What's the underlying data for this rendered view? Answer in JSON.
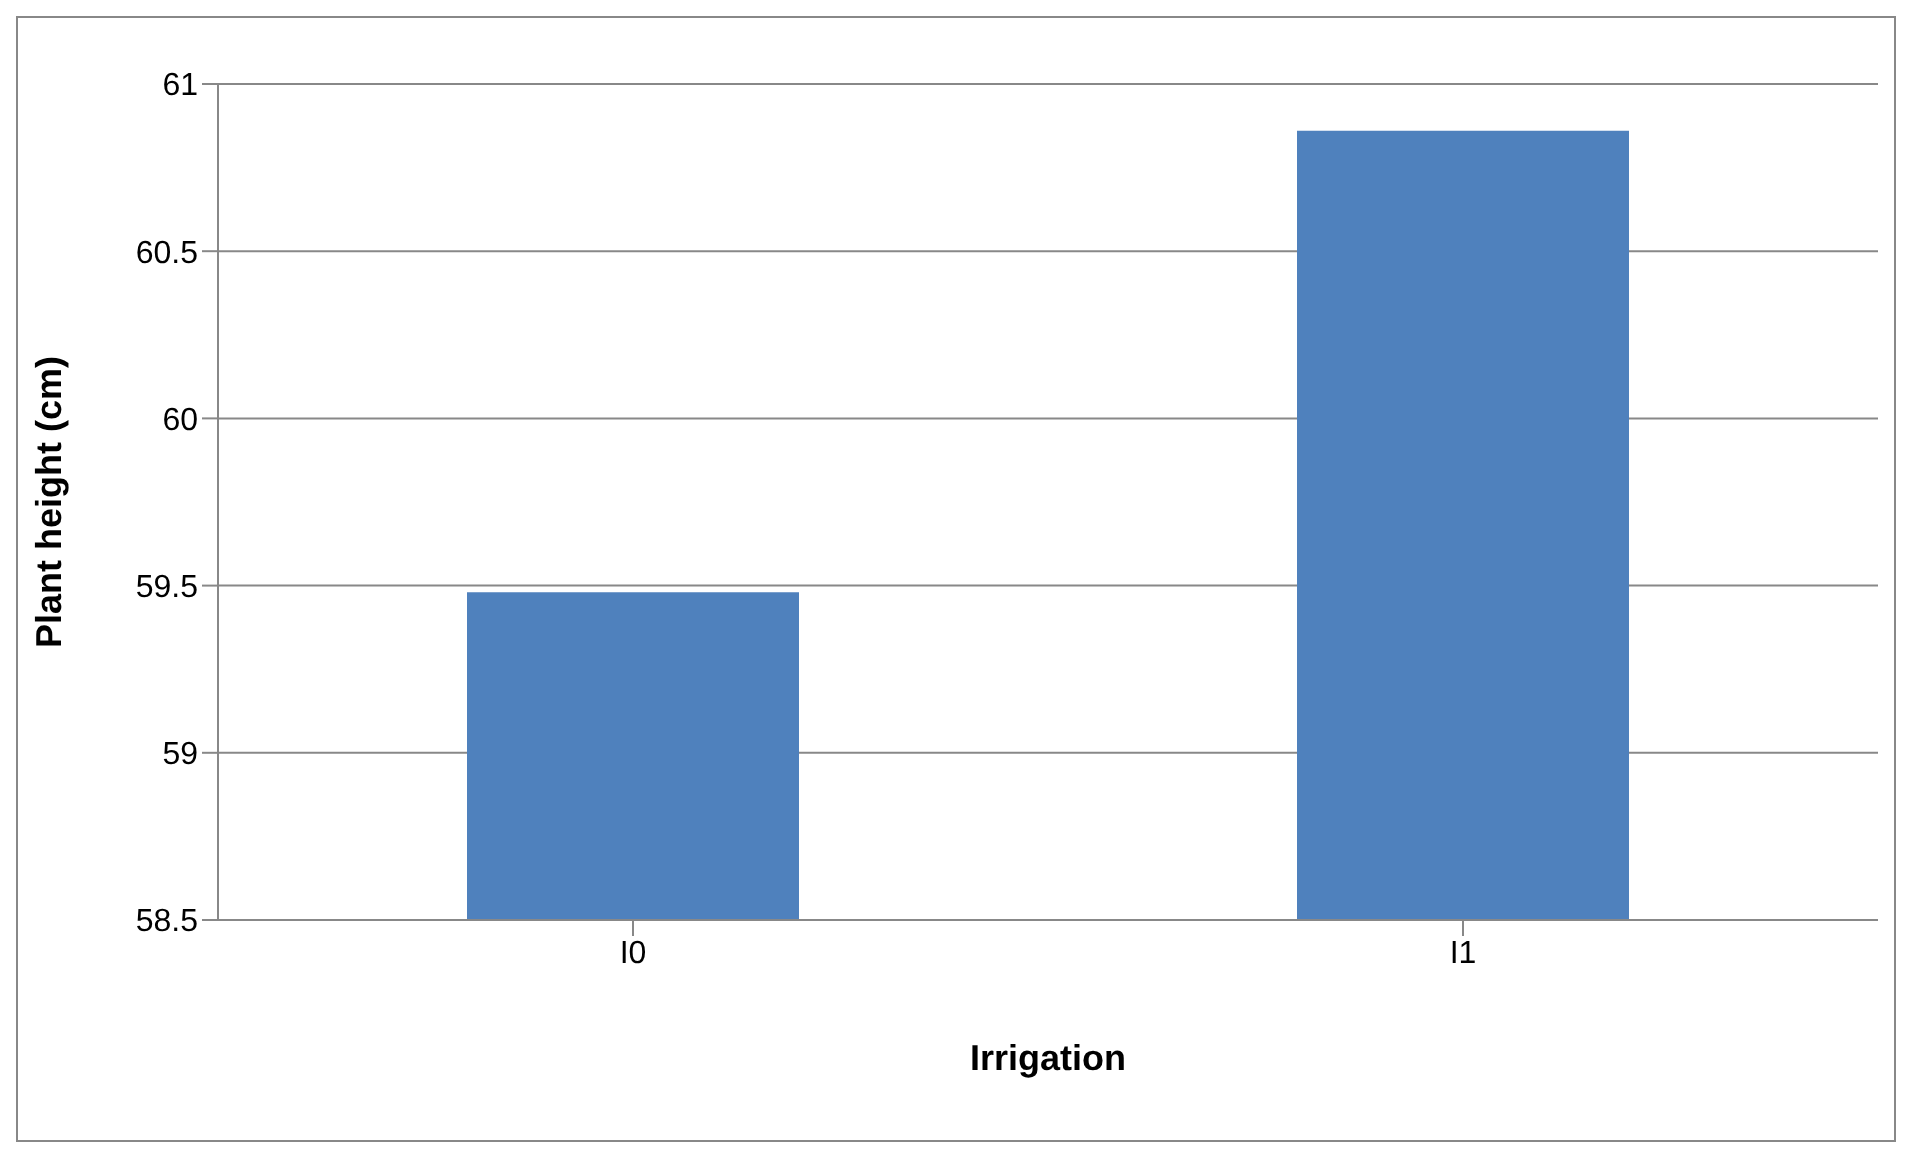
{
  "chart_data": {
    "type": "bar",
    "xlabel": "Irrigation",
    "ylabel": "Plant height (cm)",
    "categories": [
      "I0",
      "I1"
    ],
    "values": [
      59.48,
      60.86
    ],
    "color": "#4f81bd",
    "ylim": [
      58.5,
      61
    ],
    "yticks": [
      58.5,
      59,
      59.5,
      60,
      60.5,
      61
    ],
    "grid": "y",
    "legend": false
  }
}
